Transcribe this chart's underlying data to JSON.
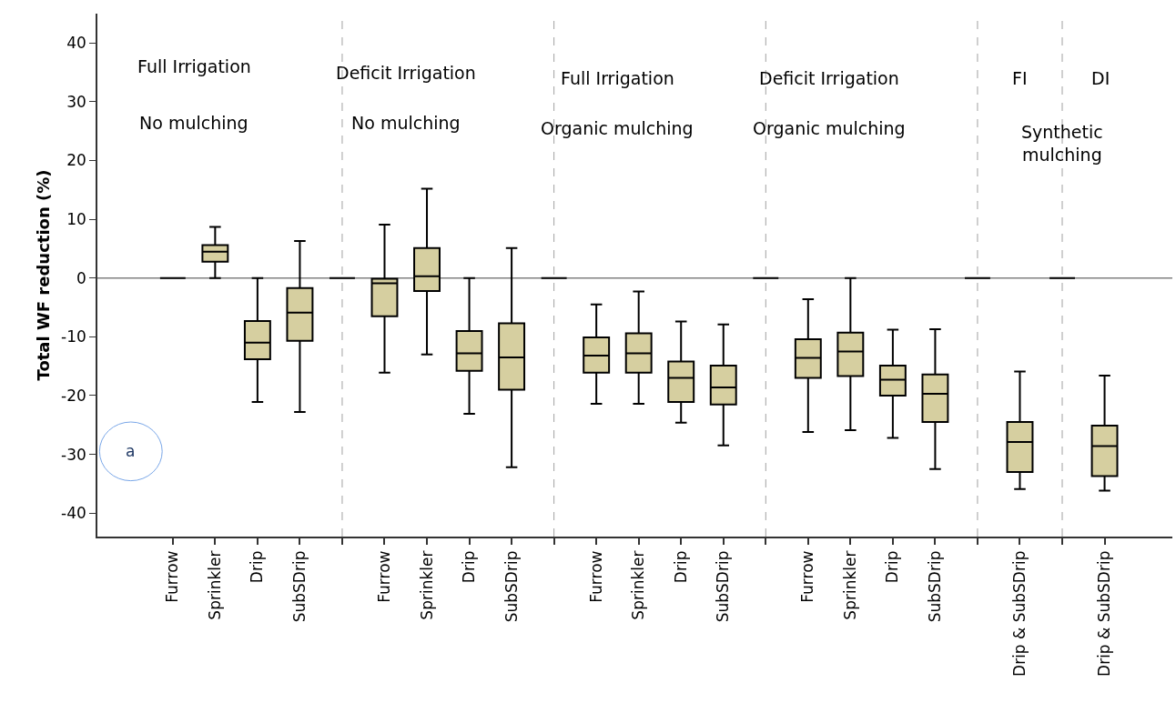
{
  "chart_data": {
    "type": "box",
    "ylabel": "Total WF reduction (%)",
    "categories": [
      "Furrow",
      "Sprinkler",
      "Drip",
      "SubSDrip",
      null,
      "Furrow",
      "Sprinkler",
      "Drip",
      "SubSDrip",
      null,
      "Furrow",
      "Sprinkler",
      "Drip",
      "SubSDrip",
      null,
      "Furrow",
      "Sprinkler",
      "Drip",
      "SubSDrip",
      null,
      "Drip & SubSDrip",
      null,
      "Drip & SubSDrip"
    ],
    "ylim": [
      -44,
      45
    ],
    "yticks": [
      -40,
      -30,
      -20,
      -10,
      0,
      10,
      20,
      30,
      40
    ],
    "colors": [
      "#000000",
      "#d6cfa0",
      "#d6cfa0",
      "#d6cfa0",
      "#000000",
      "#d6cfa0",
      "#d6cfa0",
      "#d6cfa0",
      "#d6cfa0",
      "#000000",
      "#d6cfa0",
      "#d6cfa0",
      "#d6cfa0",
      "#d6cfa0",
      "#000000",
      "#d6cfa0",
      "#d6cfa0",
      "#d6cfa0",
      "#d6cfa0",
      "#000000",
      "#d6cfa0",
      "#000000",
      "#d6cfa0"
    ],
    "grid": "x",
    "boxes": [
      {
        "low": 0,
        "q1": 0,
        "median": 0,
        "q3": 0,
        "high": 0
      },
      {
        "low": 0,
        "q1": 2.8,
        "median": 4.5,
        "q3": 5.6,
        "high": 8.7
      },
      {
        "low": -21.1,
        "q1": -13.8,
        "median": -11.0,
        "q3": -7.3,
        "high": 0
      },
      {
        "low": -22.8,
        "q1": -10.7,
        "median": -5.9,
        "q3": -1.7,
        "high": 6.3
      },
      {
        "low": 0,
        "q1": 0,
        "median": 0,
        "q3": 0,
        "high": 0
      },
      {
        "low": -16.1,
        "q1": -6.5,
        "median": -0.9,
        "q3": -0.1,
        "high": 9.1
      },
      {
        "low": -13.0,
        "q1": -2.2,
        "median": 0.3,
        "q3": 5.1,
        "high": 15.2
      },
      {
        "low": -23.1,
        "q1": -15.8,
        "median": -12.8,
        "q3": -9.0,
        "high": 0
      },
      {
        "low": -32.2,
        "q1": -19.0,
        "median": -13.5,
        "q3": -7.7,
        "high": 5.1
      },
      {
        "low": 0,
        "q1": 0,
        "median": 0,
        "q3": 0,
        "high": 0
      },
      {
        "low": -21.4,
        "q1": -16.1,
        "median": -13.2,
        "q3": -10.1,
        "high": -4.5
      },
      {
        "low": -21.4,
        "q1": -16.1,
        "median": -12.8,
        "q3": -9.4,
        "high": -2.3
      },
      {
        "low": -24.6,
        "q1": -21.1,
        "median": -17.0,
        "q3": -14.2,
        "high": -7.4
      },
      {
        "low": -28.5,
        "q1": -21.5,
        "median": -18.6,
        "q3": -14.9,
        "high": -7.9
      },
      {
        "low": 0,
        "q1": 0,
        "median": 0,
        "q3": 0,
        "high": 0
      },
      {
        "low": -26.2,
        "q1": -17.0,
        "median": -13.6,
        "q3": -10.4,
        "high": -3.6
      },
      {
        "low": -25.9,
        "q1": -16.7,
        "median": -12.5,
        "q3": -9.3,
        "high": 0
      },
      {
        "low": -27.2,
        "q1": -20.0,
        "median": -17.3,
        "q3": -14.9,
        "high": -8.8
      },
      {
        "low": -32.5,
        "q1": -24.5,
        "median": -19.7,
        "q3": -16.4,
        "high": -8.7
      },
      {
        "low": 0,
        "q1": 0,
        "median": 0,
        "q3": 0,
        "high": 0
      },
      {
        "low": -35.9,
        "q1": -33.0,
        "median": -27.9,
        "q3": -24.5,
        "high": -15.9
      },
      {
        "low": 0,
        "q1": 0,
        "median": 0,
        "q3": 0,
        "high": 0
      },
      {
        "low": -36.2,
        "q1": -33.7,
        "median": -28.6,
        "q3": -25.1,
        "high": -16.6
      }
    ],
    "ref_lines": [
      {
        "axis": "y",
        "value": 0,
        "color": "#808080",
        "line_style": "solid"
      }
    ],
    "annotations": [
      "Full Irrigation",
      "No mulching",
      "Deficit Irrigation",
      "No mulching",
      "Full Irrigation",
      "Organic mulching",
      "Deficit Irrigation",
      "Organic mulching",
      "FI",
      "DI",
      "Synthetic mulching",
      "a"
    ]
  }
}
